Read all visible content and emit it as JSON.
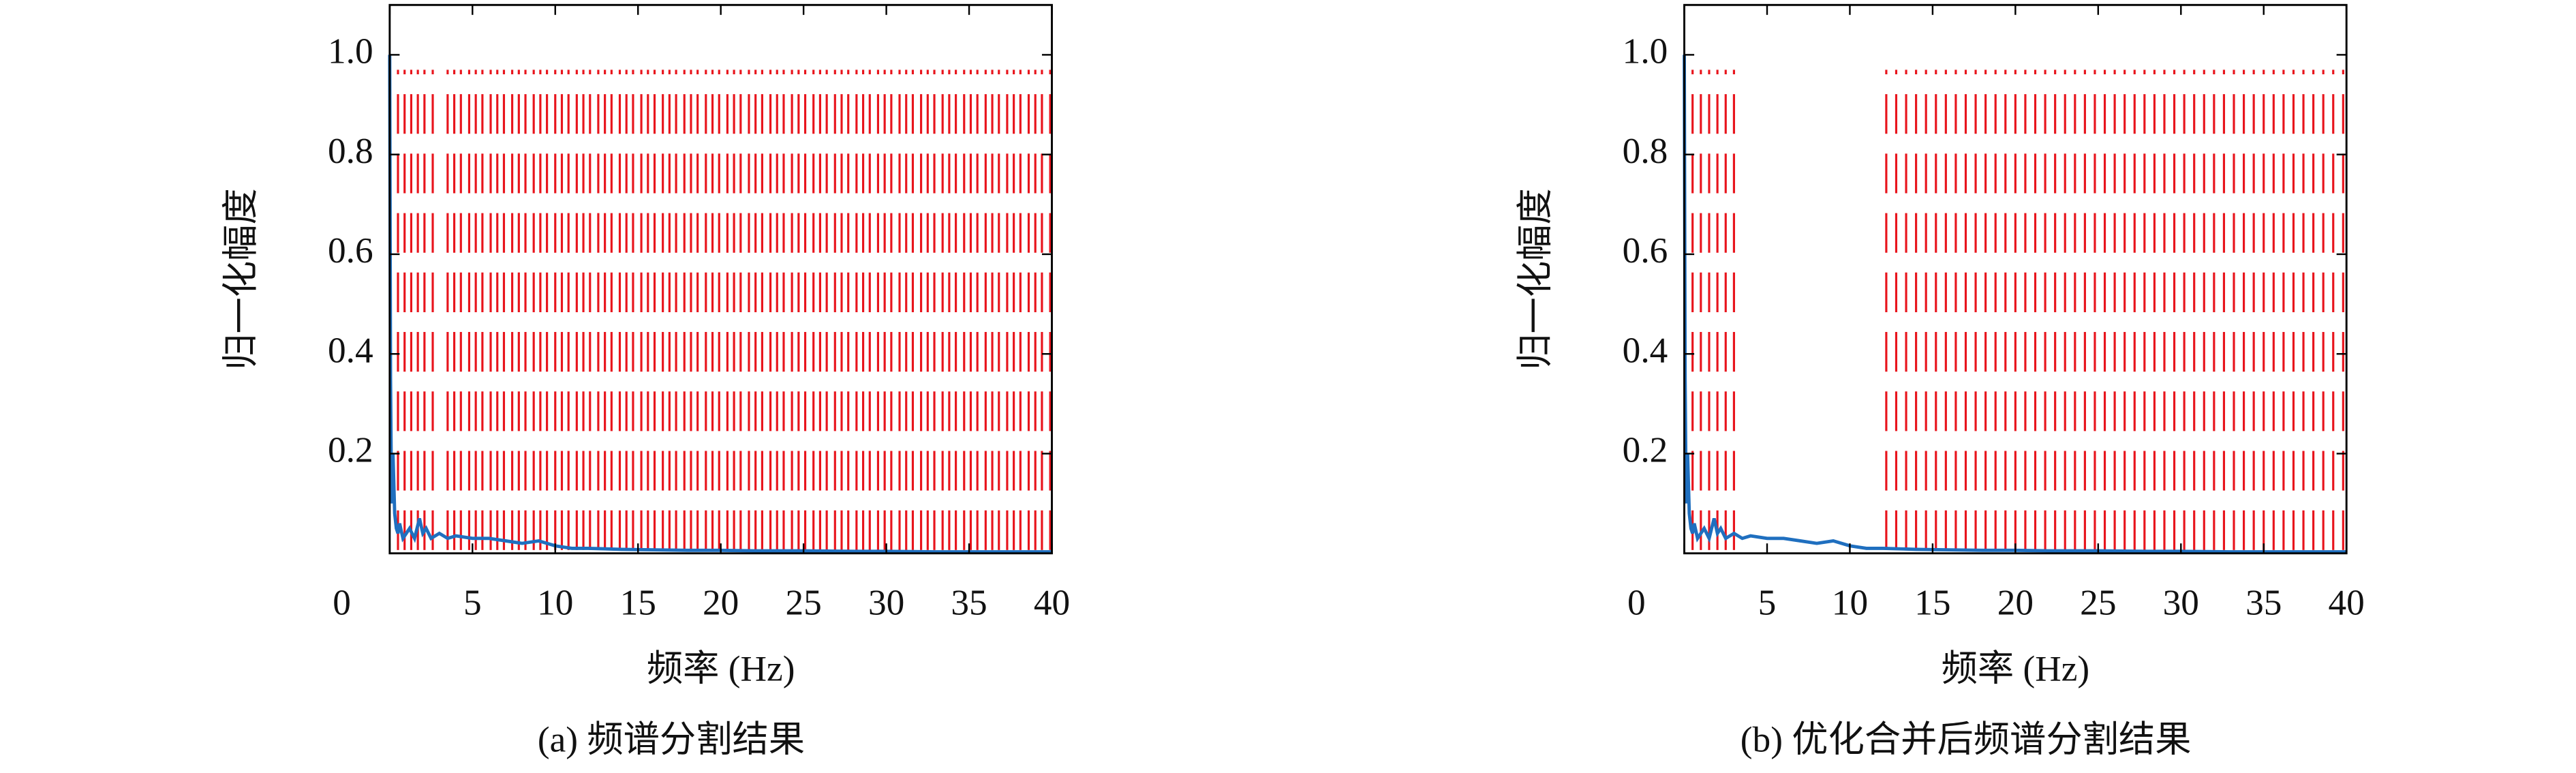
{
  "chart_data": [
    {
      "type": "line",
      "caption": "(a) 频谱分割结果",
      "xlabel": "频率 (Hz)",
      "ylabel": "归一化幅度",
      "xlim": [
        0,
        40
      ],
      "ylim": [
        0,
        1.1
      ],
      "xticks": [
        0,
        5,
        10,
        15,
        20,
        25,
        30,
        35,
        40
      ],
      "yticks": [
        0.2,
        0.4,
        0.6,
        0.8,
        {
          "value": 1,
          "label": "1.0"
        }
      ],
      "x": [
        0,
        0.05,
        0.1,
        0.15,
        0.2,
        0.3,
        0.4,
        0.5,
        0.6,
        0.8,
        1,
        1.2,
        1.5,
        1.8,
        2,
        2.2,
        2.5,
        3,
        3.5,
        4,
        5,
        6,
        7,
        8,
        9,
        10,
        11,
        12,
        14,
        16,
        18,
        20,
        22,
        25,
        28,
        30,
        33,
        36,
        40
      ],
      "series": [
        {
          "color": "#1f6fbf",
          "values": [
            1.0,
            0.35,
            0.15,
            0.1,
            0.2,
            0.08,
            0.05,
            0.04,
            0.06,
            0.03,
            0.04,
            0.05,
            0.03,
            0.07,
            0.04,
            0.05,
            0.03,
            0.04,
            0.03,
            0.035,
            0.03,
            0.03,
            0.025,
            0.02,
            0.025,
            0.015,
            0.01,
            0.01,
            0.008,
            0.007,
            0.006,
            0.006,
            0.005,
            0.005,
            0.004,
            0.004,
            0.003,
            0.003,
            0.003
          ]
        }
      ],
      "boundary_color": "#e8141c",
      "boundaries": [
        0.5,
        0.9,
        1.3,
        1.7,
        2.1,
        2.6,
        3.5,
        3.9,
        4.3,
        4.8,
        5.2,
        5.6,
        6.1,
        6.5,
        6.9,
        7.4,
        7.8,
        8.2,
        8.7,
        9.1,
        9.5,
        10,
        10.4,
        10.8,
        11.3,
        11.7,
        12.1,
        12.6,
        13,
        13.4,
        13.9,
        14.3,
        14.7,
        15.2,
        15.6,
        16,
        16.5,
        16.9,
        17.3,
        17.8,
        18.2,
        18.6,
        19.1,
        19.5,
        19.9,
        20.4,
        20.8,
        21.2,
        21.7,
        22.1,
        22.5,
        23,
        23.4,
        23.8,
        24.3,
        24.7,
        25.1,
        25.6,
        26,
        26.4,
        26.9,
        27.3,
        27.7,
        28.2,
        28.6,
        29,
        29.5,
        29.9,
        30.3,
        30.8,
        31.2,
        31.6,
        32.1,
        32.5,
        32.9,
        33.4,
        33.8,
        34.2,
        34.7,
        35.1,
        35.5,
        36,
        36.4,
        36.8,
        37.3,
        37.7,
        38.1,
        38.6,
        39,
        39.4,
        39.9
      ]
    },
    {
      "type": "line",
      "caption": "(b) 优化合并后频谱分割结果",
      "xlabel": "频率 (Hz)",
      "ylabel": "归一化幅度",
      "xlim": [
        0,
        40
      ],
      "ylim": [
        0,
        1.1
      ],
      "xticks": [
        0,
        5,
        10,
        15,
        20,
        25,
        30,
        35,
        40
      ],
      "yticks": [
        0.2,
        0.4,
        0.6,
        0.8,
        {
          "value": 1,
          "label": "1.0"
        }
      ],
      "x": [
        0,
        0.05,
        0.1,
        0.15,
        0.2,
        0.3,
        0.4,
        0.5,
        0.6,
        0.8,
        1,
        1.2,
        1.5,
        1.8,
        2,
        2.2,
        2.5,
        3,
        3.5,
        4,
        5,
        6,
        7,
        8,
        9,
        10,
        11,
        12,
        14,
        16,
        18,
        20,
        22,
        25,
        28,
        30,
        33,
        36,
        40
      ],
      "series": [
        {
          "color": "#1f6fbf",
          "values": [
            1.0,
            0.35,
            0.15,
            0.1,
            0.2,
            0.08,
            0.05,
            0.04,
            0.06,
            0.03,
            0.04,
            0.05,
            0.03,
            0.07,
            0.04,
            0.05,
            0.03,
            0.04,
            0.03,
            0.035,
            0.03,
            0.03,
            0.025,
            0.02,
            0.025,
            0.015,
            0.01,
            0.01,
            0.008,
            0.007,
            0.006,
            0.006,
            0.005,
            0.005,
            0.004,
            0.004,
            0.003,
            0.003,
            0.003
          ]
        }
      ],
      "boundary_color": "#e8141c",
      "boundaries": [
        0.5,
        1,
        1.5,
        2,
        2.5,
        3,
        12.2,
        12.8,
        13.4,
        14,
        14.6,
        15.2,
        15.8,
        16.4,
        17,
        17.6,
        18.2,
        18.8,
        19.4,
        20,
        20.6,
        21.2,
        21.8,
        22.4,
        23,
        23.6,
        24.2,
        24.8,
        25.4,
        26,
        26.6,
        27.2,
        27.8,
        28.4,
        29,
        29.6,
        30.2,
        30.8,
        31.4,
        32,
        32.6,
        33.2,
        33.8,
        34.4,
        35,
        35.6,
        36.2,
        36.8,
        37.4,
        38,
        38.6,
        39.2,
        39.8
      ]
    }
  ]
}
